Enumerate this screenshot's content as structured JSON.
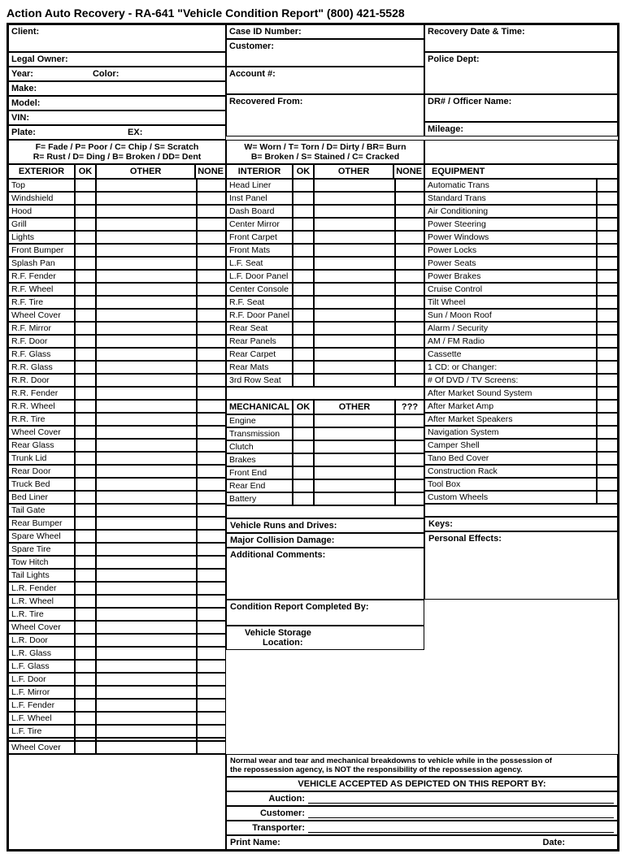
{
  "title": "Action Auto Recovery - RA-641   \"Vehicle Condition Report\"   (800) 421-5528",
  "header": {
    "client": "Client:",
    "legalOwner": "Legal Owner:",
    "year": "Year:",
    "color": "Color:",
    "make": "Make:",
    "model": "Model:",
    "vin": "VIN:",
    "plate": "Plate:",
    "ex": "EX:",
    "caseId": "Case ID Number:",
    "customer": "Customer:",
    "account": "Account #:",
    "recoveredFrom": "Recovered From:",
    "recoveryDate": "Recovery Date & Time:",
    "policeDept": "Police Dept:",
    "drOfficer": "DR# / Officer Name:",
    "mileage": "Mileage:"
  },
  "legend": {
    "left1": "F= Fade / P= Poor / C= Chip / S= Scratch",
    "left2": "R= Rust / D= Ding / B= Broken / DD= Dent",
    "mid1": "W= Worn / T= Torn / D= Dirty / BR= Burn",
    "mid2": "B= Broken / S= Stained / C= Cracked"
  },
  "columns": {
    "exterior": "EXTERIOR",
    "ok": "OK",
    "other": "OTHER",
    "none": "NONE",
    "interior": "INTERIOR",
    "mechanical": "MECHANICAL",
    "q": "???",
    "equipment": "EQUIPMENT"
  },
  "exterior": [
    "Top",
    "Windshield",
    "Hood",
    "Grill",
    "Lights",
    "Front Bumper",
    "Splash Pan",
    "R.F. Fender",
    "R.F. Wheel",
    "R.F. Tire",
    "Wheel Cover",
    "R.F. Mirror",
    "R.F. Door",
    "R.F. Glass",
    "R.R. Glass",
    "R.R. Door",
    "R.R. Fender",
    "R.R. Wheel",
    "R.R. Tire",
    "Wheel Cover",
    "Rear Glass",
    "Trunk Lid",
    "Rear Door",
    "Truck Bed",
    "Bed Liner",
    "Tail Gate",
    "Rear Bumper",
    "Spare Wheel",
    "Spare Tire",
    "Tow Hitch",
    "Tail Lights",
    " L.R. Fender",
    " L.R. Wheel",
    "L.R. Tire",
    "Wheel Cover",
    "L.R. Door",
    "L.R. Glass",
    "L.F. Glass",
    "L.F. Door",
    "L.F. Mirror",
    "L.F. Fender",
    "L.F. Wheel",
    "L.F. Tire",
    "",
    "Wheel Cover"
  ],
  "interior": [
    "Head Liner",
    "Inst Panel",
    "Dash Board",
    "Center Mirror",
    "Front Carpet",
    "Front Mats",
    "L.F. Seat",
    "L.F. Door Panel",
    "Center Console",
    "R.F. Seat",
    "R.F. Door Panel",
    "Rear Seat",
    "Rear Panels",
    "Rear Carpet",
    "Rear Mats",
    "3rd Row Seat"
  ],
  "mechanical": [
    "Engine",
    "Transmission",
    "Clutch",
    "Brakes",
    "Front End",
    "Rear End",
    "Battery"
  ],
  "equipment": [
    "Automatic Trans",
    "Standard Trans",
    "Air Conditioning",
    "Power Steering",
    "Power Windows",
    "Power Locks",
    "Power Seats",
    "Power Brakes",
    "Cruise Control",
    "Tilt Wheel",
    "Sun / Moon Roof",
    "Alarm / Security",
    "AM / FM Radio",
    "Cassette",
    "1 CD:          or  Changer:",
    "# Of  DVD  /  TV Screens:",
    "After Market Sound System",
    "After Market Amp",
    "After Market Speakers",
    "Navigation System",
    "Camper Shell",
    "Tano Bed Cover",
    "Construction Rack",
    "Tool Box",
    "Custom Wheels"
  ],
  "lower": {
    "runs": "Vehicle Runs and Drives:",
    "keys": "Keys:",
    "collision": "Major Collision Damage:",
    "personal": "Personal Effects:",
    "comments": "Additional Comments:",
    "completedBy": "Condition Report Completed By:",
    "storage": "Vehicle Storage",
    "location": "Location:",
    "disclaimer1": "Normal wear and tear and mechanical breakdowns to vehicle while in the possession of",
    "disclaimer2": "the repossession agency, is NOT the responsibility of the repossession agency.",
    "accepted": "VEHICLE ACCEPTED AS DEPICTED ON THIS REPORT BY:",
    "auction": "Auction:",
    "customerSig": "Customer:",
    "transporter": "Transporter:",
    "printName": "Print Name:",
    "date": "Date:"
  },
  "styles": {
    "border_color": "#000000",
    "background": "#ffffff",
    "title_fontsize": 14,
    "body_fontsize": 11
  }
}
